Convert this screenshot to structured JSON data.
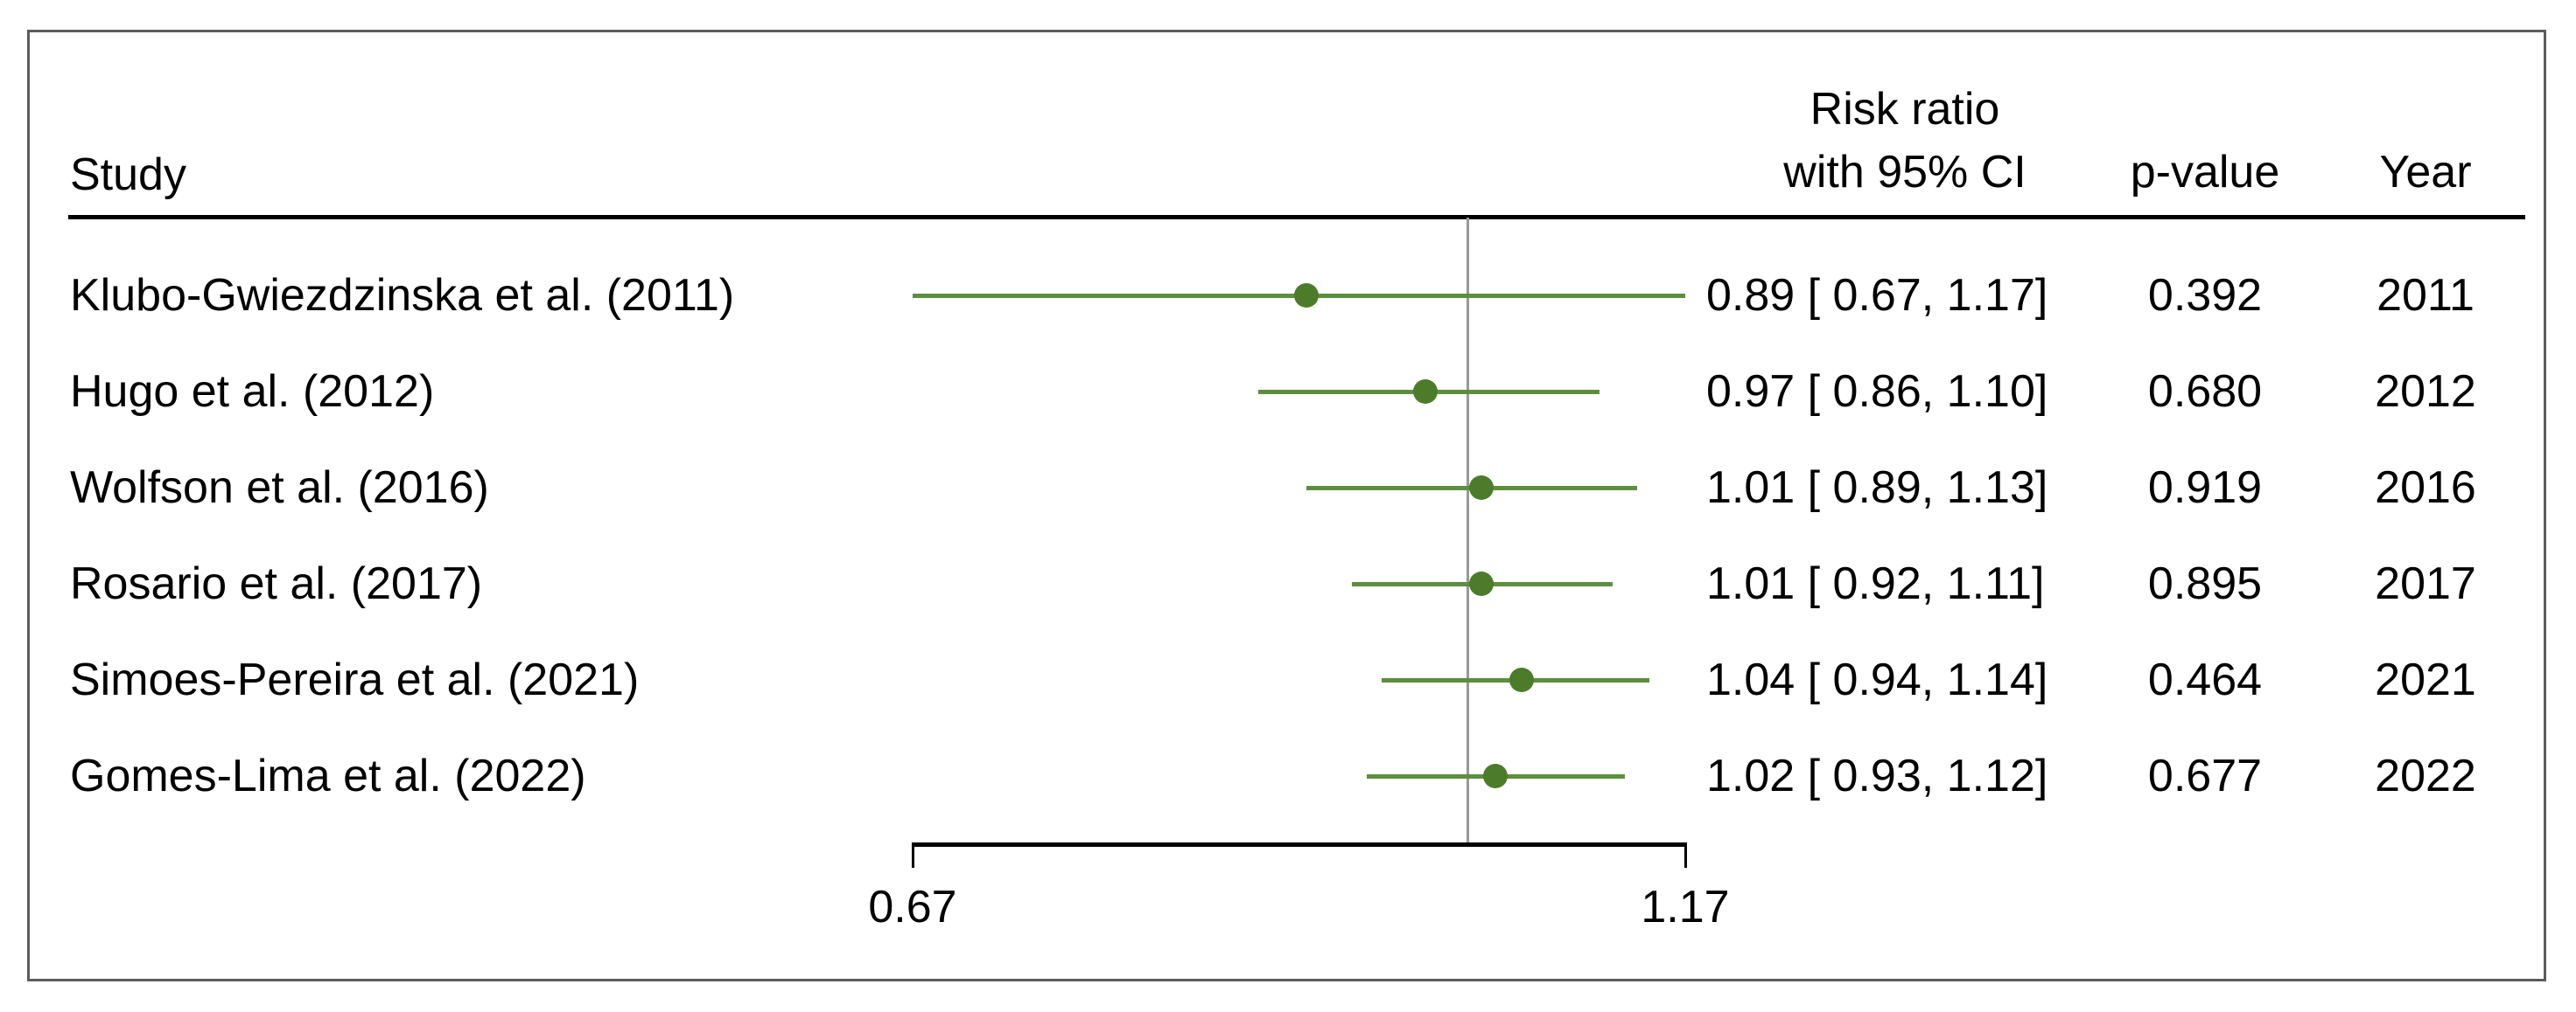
{
  "figure": {
    "study_header": "Study",
    "effect_header_line1": "Risk ratio",
    "effect_header_line2": "with 95% CI",
    "pvalue_header": "p-value",
    "year_header": "Year"
  },
  "chart_data": {
    "type": "forest",
    "effect_measure": "Risk ratio",
    "x_scale": "log",
    "x_ticks": [
      0.67,
      1.17
    ],
    "x_tick_labels": [
      "0.67",
      "1.17"
    ],
    "reference_line_value": 1.0,
    "xlim": [
      0.67,
      1.17
    ],
    "studies": [
      {
        "label": "Klubo-Gwiezdzinska et al. (2011)",
        "estimate": 0.89,
        "ci_low": 0.67,
        "ci_high": 1.17,
        "ci_text": "0.89 [ 0.67, 1.17]",
        "p_value": "0.392",
        "year": "2011"
      },
      {
        "label": "Hugo et al. (2012)",
        "estimate": 0.97,
        "ci_low": 0.86,
        "ci_high": 1.1,
        "ci_text": "0.97 [ 0.86, 1.10]",
        "p_value": "0.680",
        "year": "2012"
      },
      {
        "label": "Wolfson et al. (2016)",
        "estimate": 1.01,
        "ci_low": 0.89,
        "ci_high": 1.13,
        "ci_text": "1.01 [ 0.89, 1.13]",
        "p_value": "0.919",
        "year": "2016"
      },
      {
        "label": "Rosario et al. (2017)",
        "estimate": 1.01,
        "ci_low": 0.92,
        "ci_high": 1.11,
        "ci_text": "1.01 [ 0.92, 1.11]",
        "p_value": "0.895",
        "year": "2017"
      },
      {
        "label": "Simoes-Pereira et al. (2021)",
        "estimate": 1.04,
        "ci_low": 0.94,
        "ci_high": 1.14,
        "ci_text": "1.04 [ 0.94, 1.14]",
        "p_value": "0.464",
        "year": "2021"
      },
      {
        "label": "Gomes-Lima et al. (2022)",
        "estimate": 1.02,
        "ci_low": 0.93,
        "ci_high": 1.12,
        "ci_text": "1.02 [ 0.93, 1.12]",
        "p_value": "0.677",
        "year": "2022"
      }
    ],
    "colors": {
      "marker": "#4c7c29",
      "ci_line": "#5d8f3e",
      "reference_line": "#999999",
      "axis": "#000000",
      "header_rule": "#000000",
      "panel_border": "#5c5c5c",
      "text": "#000000",
      "background": "#ffffff"
    }
  }
}
